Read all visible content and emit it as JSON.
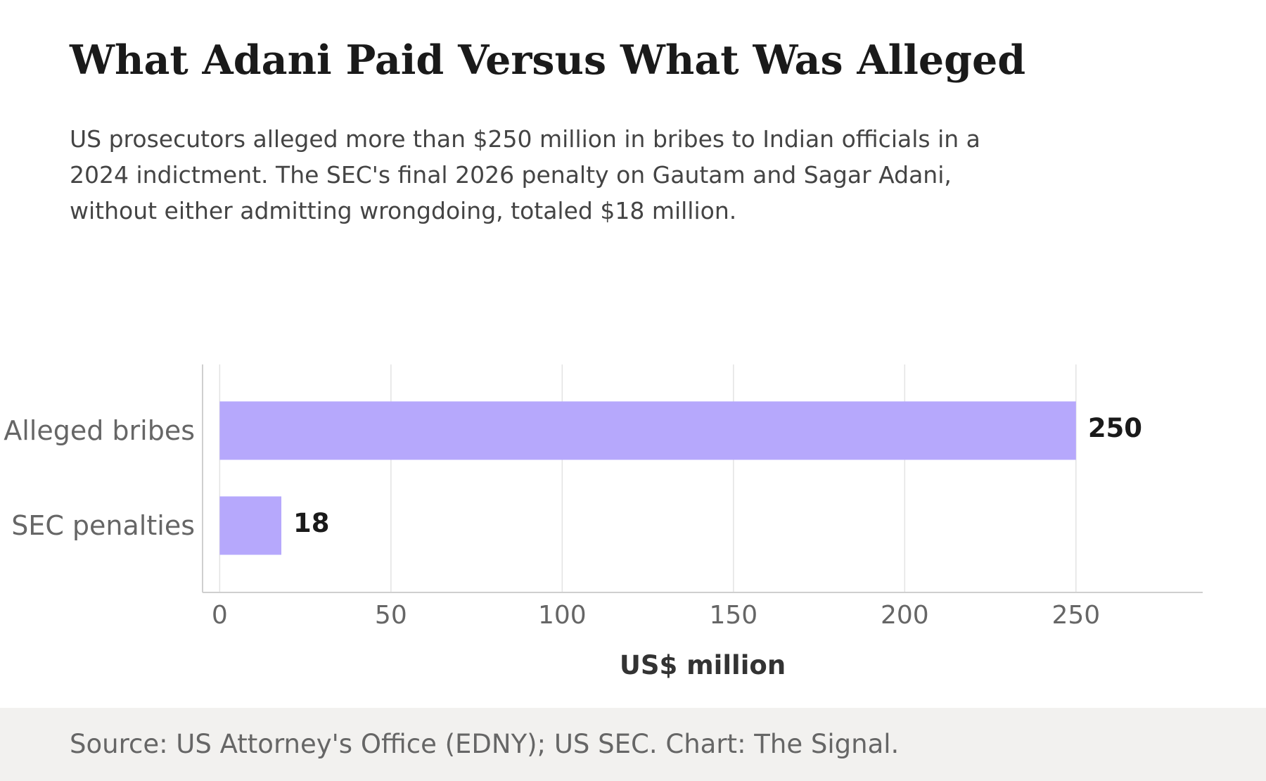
{
  "chart_data": {
    "type": "bar",
    "orientation": "horizontal",
    "title": "What Adani Paid Versus What Was Alleged",
    "subtitle": "US prosecutors alleged more than $250 million in bribes to Indian officials in a 2024 indictment. The SEC's final 2026 penalty on Gautam and Sagar Adani, without either admitting wrongdoing, totaled $18 million.",
    "categories": [
      "Alleged bribes",
      "SEC penalties"
    ],
    "values": [
      250,
      18
    ],
    "value_labels": [
      "250",
      "18"
    ],
    "xlabel": "US$ million",
    "ylabel": "",
    "xlim": [
      -5,
      287
    ],
    "xticks": [
      0,
      50,
      100,
      150,
      200,
      250
    ],
    "grid": "vertical",
    "legend": "none",
    "bar_color": "#b6a8fc"
  },
  "footer": {
    "source": "Source: US Attorney's Office (EDNY); US SEC. Chart: The Signal."
  },
  "colors": {
    "bar": "#b6a8fc",
    "grid": "#e3e3e3",
    "axis": "#cfcfcf",
    "tick_label": "#666666",
    "value_label": "#1a1a1a",
    "axis_title": "#333333",
    "footer_bg": "#f2f1ef"
  }
}
